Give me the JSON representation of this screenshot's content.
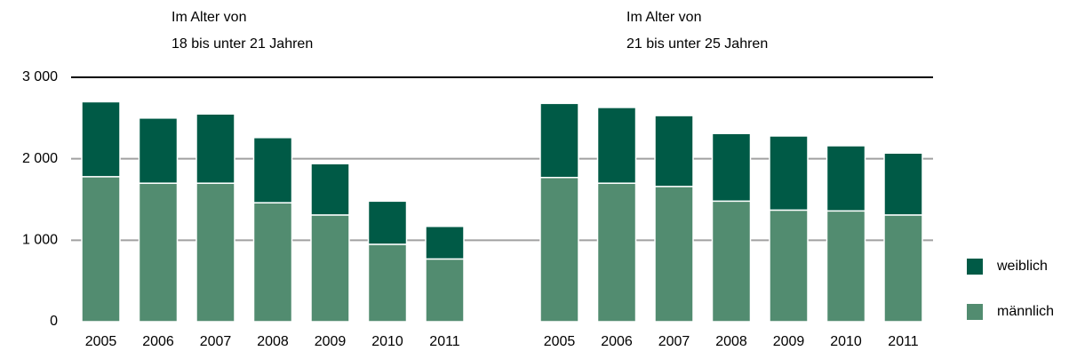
{
  "chart_data": {
    "type": "stacked-bar",
    "annotations": [
      [
        "Im Alter von",
        "18 bis unter 21 Jahren"
      ],
      [
        "Im Alter von",
        "21 bis unter 25 Jahren"
      ]
    ],
    "categories": [
      "2005",
      "2006",
      "2007",
      "2008",
      "2009",
      "2010",
      "2011",
      null,
      "2005",
      "2006",
      "2007",
      "2008",
      "2009",
      "2010",
      "2011"
    ],
    "series": [
      {
        "name": "männlich",
        "color": "#528c70",
        "values": [
          1780,
          1700,
          1700,
          1460,
          1310,
          950,
          770,
          null,
          1770,
          1700,
          1660,
          1480,
          1370,
          1360,
          1310
        ]
      },
      {
        "name": "weiblich",
        "color": "#005a46",
        "values": [
          920,
          800,
          850,
          800,
          630,
          530,
          400,
          null,
          910,
          930,
          870,
          830,
          910,
          800,
          760
        ]
      }
    ],
    "ylim": [
      0,
      3000
    ],
    "yticks": [
      0,
      {
        "value": 1000,
        "label": "1 000"
      },
      {
        "value": 2000,
        "label": "2 000"
      },
      {
        "value": 3000,
        "label": "3 000"
      }
    ],
    "grid": true
  }
}
